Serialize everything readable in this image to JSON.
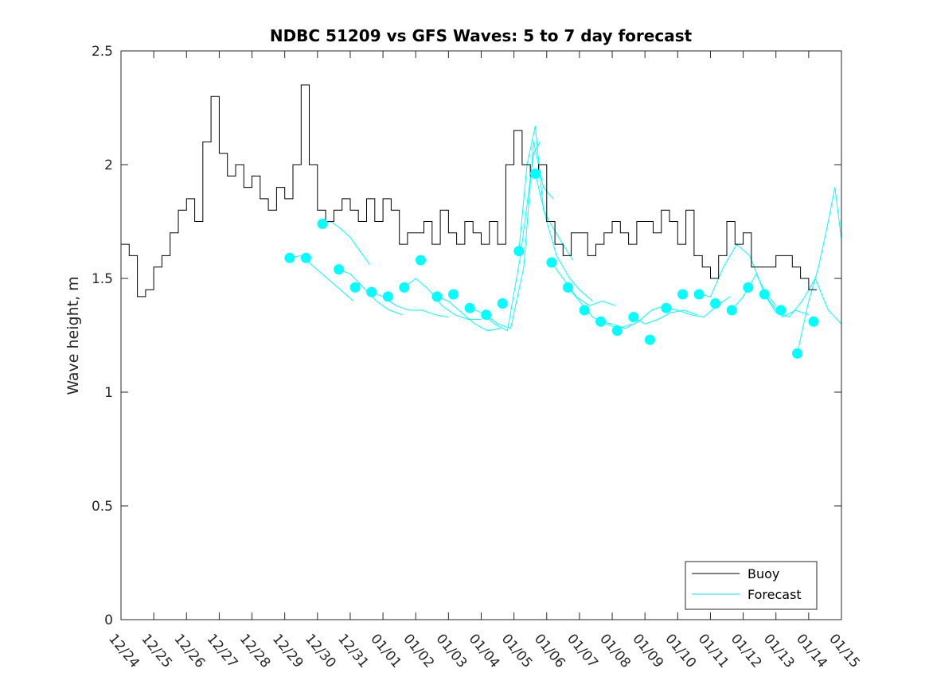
{
  "chart_data": {
    "type": "line",
    "title": "NDBC 51209 vs GFS Waves: 5 to 7 day forecast",
    "ylabel": "Wave height, m",
    "xlabel": "",
    "ylim": [
      0,
      2.5
    ],
    "xlim": [
      0,
      22
    ],
    "yticks": [
      0,
      0.5,
      1,
      1.5,
      2,
      2.5
    ],
    "ytick_labels": [
      "0",
      "0.5",
      "1",
      "1.5",
      "2",
      "2.5"
    ],
    "xtick_labels": [
      "12/24",
      "12/25",
      "12/26",
      "12/27",
      "12/28",
      "12/29",
      "12/30",
      "12/31",
      "01/01",
      "01/02",
      "01/03",
      "01/04",
      "01/05",
      "01/06",
      "01/07",
      "01/08",
      "01/09",
      "01/10",
      "01/11",
      "01/12",
      "01/13",
      "01/14",
      "01/15"
    ],
    "x_units": "days since 12/24",
    "legend": {
      "position": "bottom-right",
      "entries": [
        "Buoy",
        "Forecast"
      ]
    },
    "colors": {
      "buoy": "#000000",
      "forecast": "#00ffff",
      "axes": "#262626"
    },
    "series": [
      {
        "name": "Buoy",
        "x": [
          0,
          0.25,
          0.5,
          0.75,
          1,
          1.25,
          1.5,
          1.75,
          2,
          2.25,
          2.5,
          2.75,
          3,
          3.25,
          3.5,
          3.75,
          4,
          4.25,
          4.5,
          4.75,
          5,
          5.25,
          5.5,
          5.75,
          6,
          6.25,
          6.5,
          6.75,
          7,
          7.25,
          7.5,
          7.75,
          8,
          8.25,
          8.5,
          8.75,
          9,
          9.25,
          9.5,
          9.75,
          10,
          10.25,
          10.5,
          10.75,
          11,
          11.25,
          11.5,
          11.75,
          12,
          12.25,
          12.5,
          12.75,
          13,
          13.25,
          13.5,
          13.75,
          14,
          14.25,
          14.5,
          14.75,
          15,
          15.25,
          15.5,
          15.75,
          16,
          16.25,
          16.5,
          16.75,
          17,
          17.25,
          17.5,
          17.75,
          18,
          18.25,
          18.5,
          18.75,
          19,
          19.25,
          19.5,
          19.75,
          20,
          20.25,
          20.5,
          20.75,
          21,
          21.25
        ],
        "values": [
          1.65,
          1.6,
          1.42,
          1.45,
          1.55,
          1.6,
          1.7,
          1.8,
          1.85,
          1.75,
          2.1,
          2.3,
          2.05,
          1.95,
          2.0,
          1.9,
          1.95,
          1.85,
          1.8,
          1.9,
          1.85,
          2.0,
          2.35,
          2.0,
          1.8,
          1.75,
          1.8,
          1.85,
          1.8,
          1.75,
          1.85,
          1.75,
          1.85,
          1.8,
          1.65,
          1.7,
          1.7,
          1.75,
          1.65,
          1.8,
          1.7,
          1.65,
          1.75,
          1.7,
          1.65,
          1.75,
          1.65,
          2.0,
          2.15,
          2.0,
          1.95,
          2.0,
          1.75,
          1.65,
          1.6,
          1.7,
          1.7,
          1.6,
          1.65,
          1.7,
          1.75,
          1.7,
          1.65,
          1.75,
          1.75,
          1.7,
          1.8,
          1.75,
          1.65,
          1.8,
          1.6,
          1.55,
          1.5,
          1.6,
          1.75,
          1.65,
          1.7,
          1.55,
          1.55,
          1.55,
          1.6,
          1.6,
          1.55,
          1.5,
          1.45,
          1.45
        ]
      },
      {
        "name": "Forecast",
        "points_x": [
          5.15,
          5.65,
          6.15,
          6.65,
          7.15,
          7.65,
          8.15,
          8.65,
          9.15,
          9.65,
          10.15,
          10.65,
          11.15,
          11.65,
          12.15,
          12.65,
          13.15,
          13.65,
          14.15,
          14.65,
          15.15,
          15.65,
          16.15,
          16.65,
          17.15,
          17.65,
          18.15,
          18.65,
          19.15,
          19.65,
          20.15,
          20.65,
          21.15
        ],
        "points_y": [
          1.59,
          1.59,
          1.74,
          1.54,
          1.46,
          1.44,
          1.42,
          1.46,
          1.58,
          1.42,
          1.43,
          1.37,
          1.34,
          1.39,
          1.62,
          1.96,
          1.57,
          1.46,
          1.36,
          1.31,
          1.27,
          1.33,
          1.23,
          1.37,
          1.43,
          1.43,
          1.39,
          1.36,
          1.46,
          1.43,
          1.36,
          1.17,
          1.31
        ]
      }
    ],
    "forecast_runs": [
      {
        "x": [
          5.15,
          5.5,
          5.9,
          6.3,
          6.7,
          7.1
        ],
        "values": [
          1.59,
          1.6,
          1.55,
          1.5,
          1.45,
          1.4
        ]
      },
      {
        "x": [
          6.15,
          6.4,
          6.7,
          7.0,
          7.3,
          7.6
        ],
        "values": [
          1.74,
          1.75,
          1.72,
          1.68,
          1.62,
          1.56
        ]
      },
      {
        "x": [
          6.65,
          7.0,
          7.4,
          7.8,
          8.2,
          8.6
        ],
        "values": [
          1.54,
          1.52,
          1.46,
          1.4,
          1.36,
          1.34
        ]
      },
      {
        "x": [
          7.65,
          8.0,
          8.4,
          8.8,
          9.2,
          9.6,
          10.0
        ],
        "values": [
          1.44,
          1.42,
          1.38,
          1.36,
          1.36,
          1.34,
          1.33
        ]
      },
      {
        "x": [
          8.65,
          9.0,
          9.4,
          9.8,
          10.2,
          10.6,
          11.0
        ],
        "values": [
          1.46,
          1.5,
          1.45,
          1.38,
          1.34,
          1.32,
          1.32
        ]
      },
      {
        "x": [
          9.65,
          10.0,
          10.4,
          10.8,
          11.2,
          11.6
        ],
        "values": [
          1.42,
          1.4,
          1.35,
          1.3,
          1.27,
          1.28
        ]
      },
      {
        "x": [
          10.65,
          11.0,
          11.4,
          11.8,
          12.2,
          12.6,
          12.8
        ],
        "values": [
          1.37,
          1.35,
          1.3,
          1.27,
          1.6,
          2.05,
          2.1
        ]
      },
      {
        "x": [
          11.15,
          11.5,
          11.9,
          12.3,
          12.6,
          12.9,
          13.2
        ],
        "values": [
          1.34,
          1.3,
          1.28,
          1.55,
          2.1,
          1.9,
          1.85
        ]
      },
      {
        "x": [
          12.15,
          12.4,
          12.65,
          12.9,
          13.2,
          13.5,
          13.8
        ],
        "values": [
          1.62,
          2.0,
          2.17,
          1.8,
          1.72,
          1.65,
          1.58
        ]
      },
      {
        "x": [
          12.65,
          13.0,
          13.3,
          13.7,
          14.0,
          14.4
        ],
        "values": [
          1.96,
          1.75,
          1.6,
          1.5,
          1.45,
          1.4
        ]
      },
      {
        "x": [
          13.15,
          13.5,
          13.9,
          14.3,
          14.7,
          15.1
        ],
        "values": [
          1.57,
          1.5,
          1.42,
          1.38,
          1.4,
          1.38
        ]
      },
      {
        "x": [
          13.65,
          14.0,
          14.4,
          14.8,
          15.2,
          15.6
        ],
        "values": [
          1.46,
          1.4,
          1.33,
          1.3,
          1.28,
          1.3
        ]
      },
      {
        "x": [
          14.65,
          15.0,
          15.4,
          15.8,
          16.2,
          16.6
        ],
        "values": [
          1.31,
          1.3,
          1.28,
          1.31,
          1.36,
          1.38
        ]
      },
      {
        "x": [
          15.65,
          16.0,
          16.4,
          16.8,
          17.2,
          17.6
        ],
        "values": [
          1.33,
          1.3,
          1.32,
          1.35,
          1.36,
          1.34
        ]
      },
      {
        "x": [
          16.65,
          17.0,
          17.4,
          17.8,
          18.2,
          18.6
        ],
        "values": [
          1.37,
          1.36,
          1.34,
          1.33,
          1.38,
          1.42
        ]
      },
      {
        "x": [
          17.65,
          18.0,
          18.4,
          18.8,
          19.2,
          19.6,
          20.0
        ],
        "values": [
          1.43,
          1.42,
          1.55,
          1.65,
          1.6,
          1.45,
          1.38
        ]
      },
      {
        "x": [
          18.65,
          19.0,
          19.4,
          19.8,
          20.2,
          20.6,
          21.0
        ],
        "values": [
          1.36,
          1.42,
          1.52,
          1.4,
          1.33,
          1.36,
          1.34
        ]
      },
      {
        "x": [
          19.65,
          20.0,
          20.4,
          20.8,
          21.2,
          21.6,
          22.0
        ],
        "values": [
          1.43,
          1.35,
          1.33,
          1.4,
          1.5,
          1.36,
          1.3
        ]
      },
      {
        "x": [
          20.65,
          21.0,
          21.3,
          21.6,
          21.8,
          22.0
        ],
        "values": [
          1.17,
          1.4,
          1.55,
          1.75,
          1.9,
          1.67
        ]
      }
    ]
  }
}
